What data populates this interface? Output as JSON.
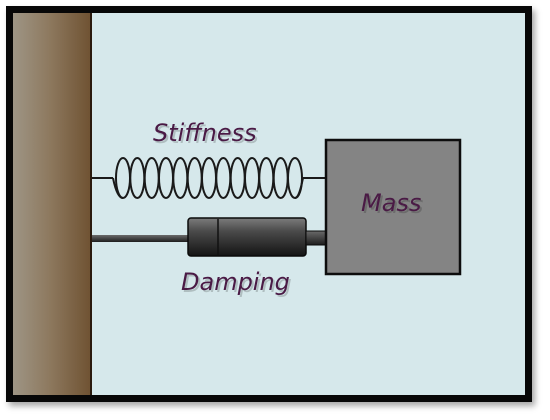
{
  "labels": {
    "stiffness": "Stiffness",
    "damping": "Damping",
    "mass": "Mass"
  },
  "colors": {
    "background": "#d6e8eb",
    "frame": "#070707",
    "wall": "#8a6e4e",
    "mass_fill": "#848484",
    "label_text": "#4a1a45"
  },
  "spring": {
    "coil_count": 13
  }
}
